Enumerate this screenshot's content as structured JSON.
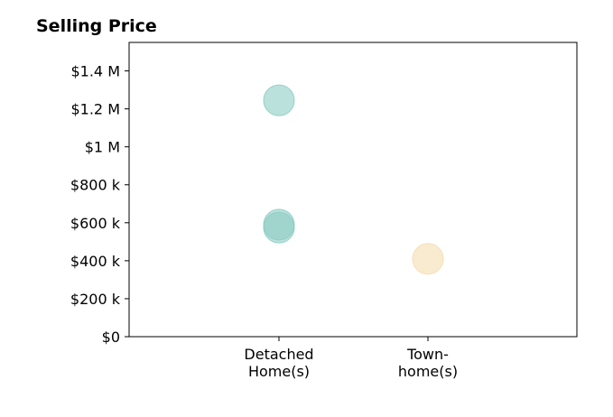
{
  "chart_data": {
    "type": "scatter",
    "title": "Selling Price",
    "xlabel": "",
    "ylabel": "",
    "categories": [
      [
        "Detached",
        "Home(s)"
      ],
      [
        "Town-",
        "home(s)"
      ]
    ],
    "ylim": [
      0,
      1550000
    ],
    "yticks": [
      {
        "value": 0,
        "label": "$0"
      },
      {
        "value": 200000,
        "label": "$200 k"
      },
      {
        "value": 400000,
        "label": "$400 k"
      },
      {
        "value": 600000,
        "label": "$600 k"
      },
      {
        "value": 800000,
        "label": "$800 k"
      },
      {
        "value": 1000000,
        "label": "$1 M"
      },
      {
        "value": 1200000,
        "label": "$1.2 M"
      },
      {
        "value": 1400000,
        "label": "$1.4 M"
      }
    ],
    "grid": false,
    "points": [
      {
        "category": 0,
        "y": 1245000,
        "color": "#8ecdc4"
      },
      {
        "category": 0,
        "y": 590000,
        "color": "#8ecdc4"
      },
      {
        "category": 0,
        "y": 575000,
        "color": "#8ecdc4"
      },
      {
        "category": 1,
        "y": 410000,
        "color": "#f5deb0"
      }
    ]
  }
}
